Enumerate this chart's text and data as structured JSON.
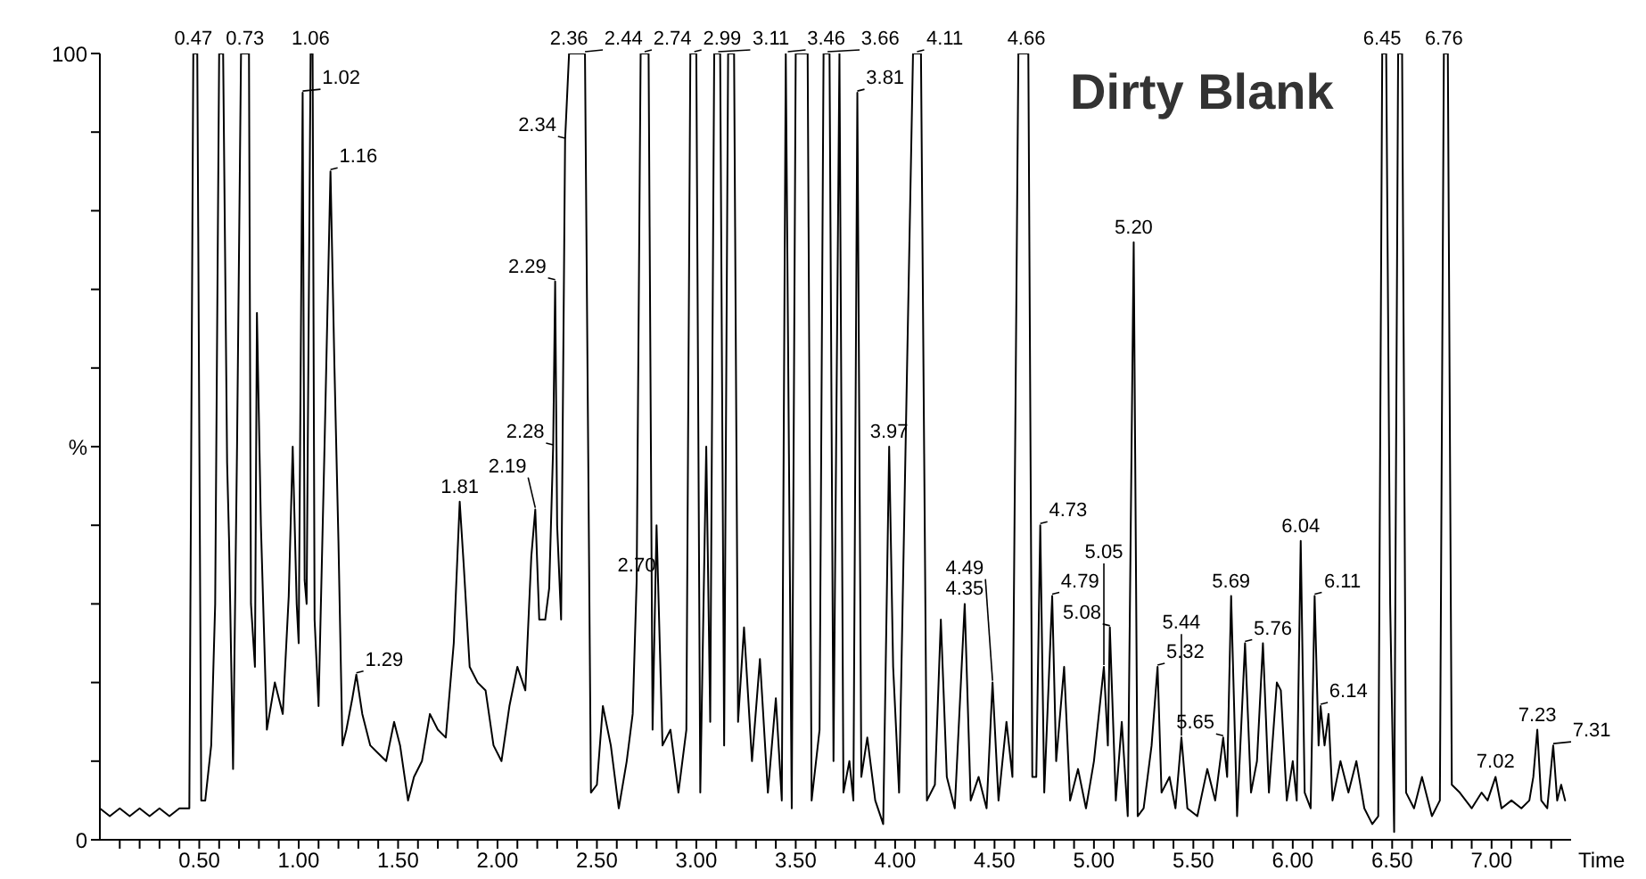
{
  "chart_data": {
    "type": "line",
    "title": "Dirty Blank",
    "xlabel": "Time",
    "xlim": [
      0,
      7.4
    ],
    "xticks": [
      {
        "value": 0.1,
        "label": null
      },
      {
        "value": 0.2,
        "label": null
      },
      {
        "value": 0.3,
        "label": null
      },
      {
        "value": 0.4,
        "label": null
      },
      {
        "value": 0.5,
        "label": "0.50"
      },
      {
        "value": 0.6,
        "label": null
      },
      {
        "value": 0.7,
        "label": null
      },
      {
        "value": 0.8,
        "label": null
      },
      {
        "value": 0.9,
        "label": null
      },
      {
        "value": 1,
        "label": "1.00"
      },
      {
        "value": 1.1,
        "label": null
      },
      {
        "value": 1.2,
        "label": null
      },
      {
        "value": 1.3,
        "label": null
      },
      {
        "value": 1.4,
        "label": null
      },
      {
        "value": 1.5,
        "label": "1.50"
      },
      {
        "value": 1.6,
        "label": null
      },
      {
        "value": 1.7,
        "label": null
      },
      {
        "value": 1.8,
        "label": null
      },
      {
        "value": 1.9,
        "label": null
      },
      {
        "value": 2,
        "label": "2.00"
      },
      {
        "value": 2.1,
        "label": null
      },
      {
        "value": 2.2,
        "label": null
      },
      {
        "value": 2.3,
        "label": null
      },
      {
        "value": 2.4,
        "label": null
      },
      {
        "value": 2.5,
        "label": "2.50"
      },
      {
        "value": 2.6,
        "label": null
      },
      {
        "value": 2.7,
        "label": null
      },
      {
        "value": 2.8,
        "label": null
      },
      {
        "value": 2.9,
        "label": null
      },
      {
        "value": 3,
        "label": "3.00"
      },
      {
        "value": 3.1,
        "label": null
      },
      {
        "value": 3.2,
        "label": null
      },
      {
        "value": 3.3,
        "label": null
      },
      {
        "value": 3.4,
        "label": null
      },
      {
        "value": 3.5,
        "label": "3.50"
      },
      {
        "value": 3.6,
        "label": null
      },
      {
        "value": 3.7,
        "label": null
      },
      {
        "value": 3.8,
        "label": null
      },
      {
        "value": 3.9,
        "label": null
      },
      {
        "value": 4,
        "label": "4.00"
      },
      {
        "value": 4.1,
        "label": null
      },
      {
        "value": 4.2,
        "label": null
      },
      {
        "value": 4.3,
        "label": null
      },
      {
        "value": 4.4,
        "label": null
      },
      {
        "value": 4.5,
        "label": "4.50"
      },
      {
        "value": 4.6,
        "label": null
      },
      {
        "value": 4.7,
        "label": null
      },
      {
        "value": 4.8,
        "label": null
      },
      {
        "value": 4.9,
        "label": null
      },
      {
        "value": 5,
        "label": "5.00"
      },
      {
        "value": 5.1,
        "label": null
      },
      {
        "value": 5.2,
        "label": null
      },
      {
        "value": 5.3,
        "label": null
      },
      {
        "value": 5.4,
        "label": null
      },
      {
        "value": 5.5,
        "label": "5.50"
      },
      {
        "value": 5.6,
        "label": null
      },
      {
        "value": 5.7,
        "label": null
      },
      {
        "value": 5.8,
        "label": null
      },
      {
        "value": 5.9,
        "label": null
      },
      {
        "value": 6,
        "label": "6.00"
      },
      {
        "value": 6.1,
        "label": null
      },
      {
        "value": 6.2,
        "label": null
      },
      {
        "value": 6.3,
        "label": null
      },
      {
        "value": 6.4,
        "label": null
      },
      {
        "value": 6.5,
        "label": "6.50"
      },
      {
        "value": 6.6,
        "label": null
      },
      {
        "value": 6.7,
        "label": null
      },
      {
        "value": 6.8,
        "label": null
      },
      {
        "value": 6.9,
        "label": null
      },
      {
        "value": 7,
        "label": "7.00"
      },
      {
        "value": 7.1,
        "label": null
      },
      {
        "value": 7.2,
        "label": null
      },
      {
        "value": 7.3,
        "label": null
      }
    ],
    "ylim": [
      0,
      100
    ],
    "yticks": [
      0,
      {
        "value": 10,
        "label": null
      },
      {
        "value": 20,
        "label": null
      },
      {
        "value": 30,
        "label": null
      },
      {
        "value": 40,
        "label": null
      },
      {
        "value": 50,
        "label": "%"
      },
      {
        "value": 60,
        "label": null
      },
      {
        "value": 70,
        "label": null
      },
      {
        "value": 80,
        "label": null
      },
      {
        "value": 90,
        "label": null
      },
      100
    ],
    "series": [
      {
        "color": "#000000",
        "x": [
          0,
          0.05,
          0.1,
          0.15,
          0.2,
          0.25,
          0.3,
          0.35,
          0.4,
          0.45,
          0.47,
          0.49,
          0.51,
          0.53,
          0.56,
          0.58,
          0.6,
          0.62,
          0.64,
          0.65,
          0.67,
          0.69,
          0.71,
          0.73,
          0.75,
          0.76,
          0.78,
          0.79,
          0.81,
          0.84,
          0.88,
          0.92,
          0.95,
          0.97,
          0.99,
          1,
          1.02,
          1.03,
          1.04,
          1.06,
          1.07,
          1.08,
          1.1,
          1.13,
          1.16,
          1.18,
          1.2,
          1.22,
          1.24,
          1.27,
          1.29,
          1.32,
          1.36,
          1.4,
          1.44,
          1.48,
          1.51,
          1.55,
          1.58,
          1.62,
          1.66,
          1.7,
          1.74,
          1.78,
          1.81,
          1.83,
          1.86,
          1.9,
          1.94,
          1.98,
          2.02,
          2.06,
          2.1,
          2.14,
          2.17,
          2.19,
          2.21,
          2.24,
          2.26,
          2.28,
          2.29,
          2.3,
          2.32,
          2.34,
          2.36,
          2.38,
          2.42,
          2.44,
          2.47,
          2.5,
          2.53,
          2.57,
          2.61,
          2.65,
          2.68,
          2.7,
          2.72,
          2.76,
          2.78,
          2.8,
          2.83,
          2.87,
          2.91,
          2.95,
          2.97,
          3,
          3.02,
          3.05,
          3.07,
          3.09,
          3.12,
          3.14,
          3.16,
          3.19,
          3.21,
          3.24,
          3.28,
          3.32,
          3.36,
          3.4,
          3.43,
          3.45,
          3.48,
          3.5,
          3.53,
          3.56,
          3.58,
          3.62,
          3.64,
          3.67,
          3.69,
          3.72,
          3.74,
          3.77,
          3.79,
          3.81,
          3.83,
          3.86,
          3.9,
          3.94,
          3.97,
          3.99,
          4.02,
          4.06,
          4.09,
          4.13,
          4.16,
          4.2,
          4.23,
          4.26,
          4.3,
          4.35,
          4.38,
          4.42,
          4.46,
          4.49,
          4.52,
          4.56,
          4.59,
          4.62,
          4.67,
          4.69,
          4.71,
          4.73,
          4.75,
          4.79,
          4.81,
          4.85,
          4.88,
          4.92,
          4.96,
          5,
          5.05,
          5.07,
          5.08,
          5.11,
          5.14,
          5.17,
          5.2,
          5.22,
          5.25,
          5.29,
          5.32,
          5.34,
          5.38,
          5.41,
          5.44,
          5.47,
          5.52,
          5.57,
          5.61,
          5.65,
          5.67,
          5.69,
          5.72,
          5.76,
          5.79,
          5.82,
          5.85,
          5.88,
          5.92,
          5.94,
          5.97,
          6,
          6.02,
          6.04,
          6.06,
          6.09,
          6.11,
          6.13,
          6.14,
          6.16,
          6.18,
          6.2,
          6.24,
          6.28,
          6.32,
          6.36,
          6.4,
          6.43,
          6.45,
          6.47,
          6.49,
          6.51,
          6.53,
          6.55,
          6.57,
          6.61,
          6.65,
          6.7,
          6.74,
          6.76,
          6.78,
          6.8,
          6.84,
          6.9,
          6.95,
          6.98,
          7.02,
          7.05,
          7.1,
          7.15,
          7.19,
          7.21,
          7.23,
          7.25,
          7.28,
          7.31,
          7.33,
          7.35,
          7.37
        ],
        "values": [
          4,
          3,
          4,
          3,
          4,
          3,
          4,
          3,
          4,
          4,
          100,
          100,
          5,
          5,
          12,
          30,
          100,
          100,
          48,
          38,
          9,
          50,
          100,
          100,
          100,
          30,
          22,
          67,
          40,
          14,
          20,
          16,
          31,
          50,
          30,
          25,
          95,
          33,
          30,
          100,
          100,
          28,
          17,
          50,
          85,
          60,
          38,
          12,
          14,
          18,
          21,
          16,
          12,
          11,
          10,
          15,
          12,
          5,
          8,
          10,
          16,
          14,
          13,
          25,
          43,
          35,
          22,
          20,
          19,
          12,
          10,
          17,
          22,
          19,
          36,
          42,
          28,
          28,
          32,
          50,
          71,
          40,
          28,
          89,
          100,
          100,
          100,
          100,
          6,
          7,
          17,
          12,
          4,
          10,
          16,
          33,
          100,
          100,
          14,
          40,
          12,
          14,
          6,
          14,
          100,
          100,
          6,
          50,
          15,
          100,
          100,
          12,
          100,
          100,
          15,
          27,
          10,
          23,
          6,
          18,
          5,
          100,
          4,
          100,
          100,
          100,
          5,
          14,
          100,
          100,
          10,
          100,
          6,
          10,
          5,
          95,
          8,
          13,
          5,
          2,
          50,
          22,
          6,
          60,
          100,
          100,
          5,
          7,
          28,
          8,
          4,
          30,
          5,
          8,
          4,
          20,
          5,
          15,
          8,
          100,
          100,
          8,
          8,
          40,
          6,
          31,
          10,
          22,
          5,
          9,
          4,
          10,
          22,
          12,
          27,
          5,
          15,
          3,
          76,
          3,
          4,
          12,
          22,
          6,
          8,
          4,
          13,
          4,
          3,
          9,
          5,
          13,
          8,
          31,
          3,
          25,
          6,
          10,
          25,
          6,
          20,
          19,
          5,
          10,
          5,
          38,
          6,
          4,
          31,
          12,
          17,
          12,
          16,
          5,
          10,
          6,
          10,
          4,
          2,
          3,
          100,
          100,
          30,
          1,
          100,
          100,
          6,
          4,
          8,
          3,
          5,
          100,
          100,
          7,
          6,
          4,
          6,
          5,
          8,
          4,
          5,
          4,
          5,
          8,
          14,
          5,
          4,
          12,
          5,
          7,
          5
        ]
      }
    ],
    "annotations": [
      {
        "text": "0.47",
        "x": 0.47,
        "y": 100
      },
      {
        "text": "0.73",
        "x": 0.73,
        "y": 100
      },
      {
        "text": "1.02",
        "x": 1.02,
        "y": 95
      },
      {
        "text": "1.06",
        "x": 1.06,
        "y": 100
      },
      {
        "text": "1.16",
        "x": 1.16,
        "y": 85
      },
      {
        "text": "1.29",
        "x": 1.29,
        "y": 21
      },
      {
        "text": "1.81",
        "x": 1.81,
        "y": 43
      },
      {
        "text": "2.19",
        "x": 2.19,
        "y": 42
      },
      {
        "text": "2.28",
        "x": 2.28,
        "y": 50
      },
      {
        "text": "2.29",
        "x": 2.29,
        "y": 71
      },
      {
        "text": "2.34",
        "x": 2.34,
        "y": 89
      },
      {
        "text": "2.36",
        "x": 2.36,
        "y": 100
      },
      {
        "text": "2.44",
        "x": 2.44,
        "y": 100
      },
      {
        "text": "2.70",
        "x": 2.7,
        "y": 33
      },
      {
        "text": "2.74",
        "x": 2.74,
        "y": 100
      },
      {
        "text": "2.99",
        "x": 2.99,
        "y": 100
      },
      {
        "text": "3.11",
        "x": 3.11,
        "y": 100
      },
      {
        "text": "3.46",
        "x": 3.46,
        "y": 100
      },
      {
        "text": "3.66",
        "x": 3.66,
        "y": 100
      },
      {
        "text": "3.81",
        "x": 3.81,
        "y": 95
      },
      {
        "text": "3.97",
        "x": 3.97,
        "y": 50
      },
      {
        "text": "4.11",
        "x": 4.11,
        "y": 100
      },
      {
        "text": "4.35",
        "x": 4.35,
        "y": 30
      },
      {
        "text": "4.49",
        "x": 4.49,
        "y": 20
      },
      {
        "text": "4.66",
        "x": 4.66,
        "y": 100
      },
      {
        "text": "4.73",
        "x": 4.73,
        "y": 40
      },
      {
        "text": "4.79",
        "x": 4.79,
        "y": 31
      },
      {
        "text": "5.05",
        "x": 5.05,
        "y": 22
      },
      {
        "text": "5.08",
        "x": 5.08,
        "y": 27
      },
      {
        "text": "5.20",
        "x": 5.2,
        "y": 76
      },
      {
        "text": "5.32",
        "x": 5.32,
        "y": 22
      },
      {
        "text": "5.44",
        "x": 5.44,
        "y": 13
      },
      {
        "text": "5.65",
        "x": 5.65,
        "y": 13
      },
      {
        "text": "5.69",
        "x": 5.69,
        "y": 31
      },
      {
        "text": "5.76",
        "x": 5.76,
        "y": 25
      },
      {
        "text": "6.04",
        "x": 6.04,
        "y": 38
      },
      {
        "text": "6.11",
        "x": 6.11,
        "y": 31
      },
      {
        "text": "6.14",
        "x": 6.14,
        "y": 17
      },
      {
        "text": "6.45",
        "x": 6.45,
        "y": 100
      },
      {
        "text": "6.76",
        "x": 6.76,
        "y": 100
      },
      {
        "text": "7.02",
        "x": 7.02,
        "y": 8
      },
      {
        "text": "7.23",
        "x": 7.23,
        "y": 14
      },
      {
        "text": "7.31",
        "x": 7.31,
        "y": 12
      }
    ]
  }
}
